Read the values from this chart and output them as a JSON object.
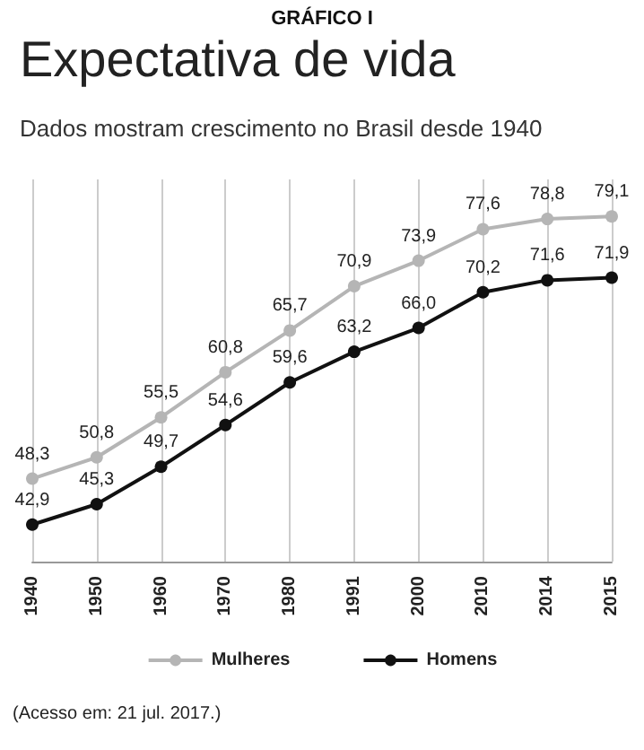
{
  "chart_data": {
    "type": "line",
    "title": "Expectativa de vida",
    "subtitle": "Dados mostram crescimento no Brasil desde 1940",
    "annotations": [
      "GRÁFICO I",
      "(Acesso em: 21 jul. 2017.)"
    ],
    "categories": [
      "1940",
      "1950",
      "1960",
      "1970",
      "1980",
      "1991",
      "2000",
      "2010",
      "2014",
      "2015"
    ],
    "series": [
      {
        "name": "Mulheres",
        "color": "#b5b5b5",
        "values": [
          48.3,
          50.8,
          55.5,
          60.8,
          65.7,
          70.9,
          73.9,
          77.6,
          78.8,
          79.1
        ],
        "value_labels": [
          "48,3",
          "50,8",
          "55,5",
          "60,8",
          "65,7",
          "70,9",
          "73,9",
          "77,6",
          "78,8",
          "79,1"
        ]
      },
      {
        "name": "Homens",
        "color": "#111111",
        "values": [
          42.9,
          45.3,
          49.7,
          54.6,
          59.6,
          63.2,
          66.0,
          70.2,
          71.6,
          71.9
        ],
        "value_labels": [
          "42,9",
          "45,3",
          "49,7",
          "54,6",
          "59,6",
          "63,2",
          "66,0",
          "70,2",
          "71,6",
          "71,9"
        ]
      }
    ],
    "grid": "x",
    "legend": "bottom",
    "marker": "circle",
    "line_style": "solid"
  }
}
